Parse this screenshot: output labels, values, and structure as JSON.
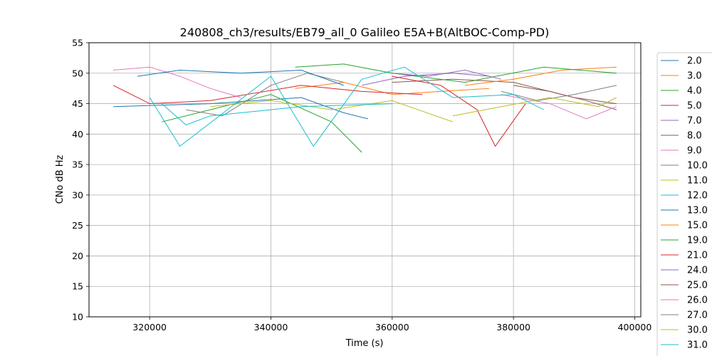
{
  "chart_data": {
    "type": "line",
    "title": "240808_ch3/results/EB79_all_0 Galileo E5A+B(AltBOC-Comp-PD)",
    "xlabel": "Time (s)",
    "ylabel": "CNo dB Hz",
    "xlim": [
      310000,
      401000
    ],
    "ylim": [
      10,
      55
    ],
    "xticks": [
      320000,
      340000,
      360000,
      380000,
      400000
    ],
    "yticks": [
      10,
      15,
      20,
      25,
      30,
      35,
      40,
      45,
      50,
      55
    ],
    "grid": true,
    "legend_position": "right, outside plot",
    "series": [
      {
        "name": "2.0",
        "color": "#1f77b4",
        "x": [
          314000,
          330000,
          345000,
          352000,
          356000
        ],
        "y": [
          44.5,
          45.0,
          46.0,
          43.5,
          42.5
        ]
      },
      {
        "name": "3.0",
        "color": "#ff7f0e",
        "x": [
          344000,
          352000,
          360000,
          368000,
          376000
        ],
        "y": [
          47.5,
          48.5,
          46.5,
          47.0,
          47.5
        ]
      },
      {
        "name": "4.0",
        "color": "#2ca02c",
        "x": [
          322000,
          330000,
          340000,
          350000,
          354000,
          355000
        ],
        "y": [
          42.0,
          44.0,
          46.5,
          42.0,
          38.0,
          37.0
        ]
      },
      {
        "name": "5.0",
        "color": "#d62728",
        "x": [
          314000,
          320000,
          330000,
          345000,
          355000,
          365000
        ],
        "y": [
          48.0,
          45.0,
          45.5,
          48.0,
          47.0,
          46.5
        ]
      },
      {
        "name": "7.0",
        "color": "#9467bd",
        "x": [
          355000,
          362000,
          370000,
          376000
        ],
        "y": [
          48.0,
          49.5,
          50.0,
          49.5
        ]
      },
      {
        "name": "8.0",
        "color": "#8c564b",
        "x": [
          360000,
          370000,
          380000,
          390000,
          397000
        ],
        "y": [
          48.5,
          49.0,
          48.5,
          46.0,
          45.0
        ]
      },
      {
        "name": "9.0",
        "color": "#e377c2",
        "x": [
          314000,
          320000,
          325000,
          330000,
          335000
        ],
        "y": [
          50.5,
          51.0,
          49.5,
          47.5,
          46.0
        ]
      },
      {
        "name": "10.0",
        "color": "#7f7f7f",
        "x": [
          326000,
          332000,
          340000,
          346000,
          352000
        ],
        "y": [
          44.0,
          43.0,
          48.0,
          50.0,
          48.5
        ]
      },
      {
        "name": "11.0",
        "color": "#bcbd22",
        "x": [
          330000,
          340000,
          350000,
          360000,
          370000
        ],
        "y": [
          44.5,
          45.5,
          44.0,
          45.5,
          42.0
        ]
      },
      {
        "name": "12.0",
        "color": "#17becf",
        "x": [
          322000,
          326000,
          330000,
          345000,
          360000
        ],
        "y": [
          45.0,
          41.5,
          43.0,
          44.5,
          45.0
        ]
      },
      {
        "name": "13.0",
        "color": "#1f77b4",
        "x": [
          318000,
          325000,
          335000,
          345000,
          352000
        ],
        "y": [
          49.5,
          50.5,
          50.0,
          50.5,
          48.0
        ]
      },
      {
        "name": "15.0",
        "color": "#ff7f0e",
        "x": [
          372000,
          380000,
          388000,
          397000
        ],
        "y": [
          48.0,
          49.0,
          50.5,
          51.0
        ]
      },
      {
        "name": "19.0",
        "color": "#2ca02c",
        "x": [
          344000,
          352000,
          360000,
          372000,
          385000,
          397000
        ],
        "y": [
          51.0,
          51.5,
          50.0,
          48.5,
          51.0,
          50.0
        ]
      },
      {
        "name": "21.0",
        "color": "#d62728",
        "x": [
          360000,
          368000,
          374000,
          377000,
          382000
        ],
        "y": [
          49.5,
          48.0,
          44.0,
          38.0,
          45.0
        ]
      },
      {
        "name": "24.0",
        "color": "#9467bd",
        "x": [
          360000,
          366000,
          372000,
          378000
        ],
        "y": [
          50.0,
          49.5,
          50.5,
          49.0
        ]
      },
      {
        "name": "25.0",
        "color": "#8c564b",
        "x": [
          380000,
          386000,
          392000,
          397000
        ],
        "y": [
          48.0,
          47.0,
          45.5,
          44.0
        ]
      },
      {
        "name": "26.0",
        "color": "#e377c2",
        "x": [
          378000,
          386000,
          392000,
          397000
        ],
        "y": [
          46.5,
          45.0,
          42.5,
          44.5
        ]
      },
      {
        "name": "27.0",
        "color": "#7f7f7f",
        "x": [
          378000,
          384000,
          390000,
          397000
        ],
        "y": [
          47.0,
          45.5,
          46.5,
          48.0
        ]
      },
      {
        "name": "30.0",
        "color": "#bcbd22",
        "x": [
          370000,
          378000,
          386000,
          394000,
          397000
        ],
        "y": [
          43.0,
          44.5,
          46.0,
          44.5,
          46.0
        ]
      },
      {
        "name": "31.0",
        "color": "#17becf",
        "x": [
          320000,
          325000,
          340000,
          347000,
          355000,
          362000,
          370000,
          380000,
          385000
        ],
        "y": [
          46.0,
          38.0,
          49.5,
          38.0,
          49.0,
          51.0,
          46.0,
          46.5,
          44.0
        ]
      }
    ]
  }
}
